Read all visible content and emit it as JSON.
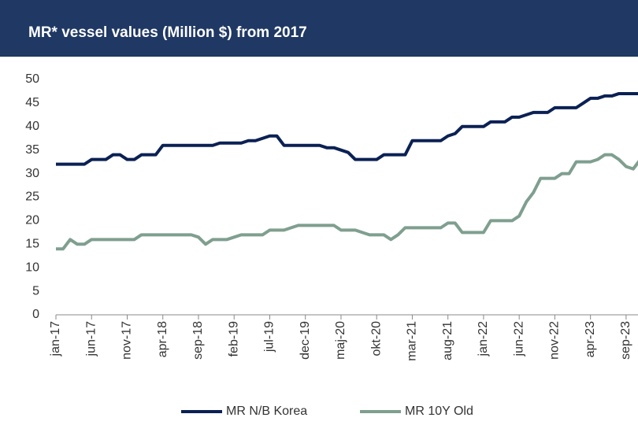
{
  "chart_data": {
    "type": "line",
    "title": "MR* vessel values (Million $) from 2017",
    "categories": [
      "jan-17",
      null,
      null,
      null,
      null,
      "jun-17",
      null,
      null,
      null,
      null,
      "nov-17",
      null,
      null,
      null,
      null,
      "apr-18",
      null,
      null,
      null,
      null,
      "sep-18",
      null,
      null,
      null,
      null,
      "feb-19",
      null,
      null,
      null,
      null,
      "jul-19",
      null,
      null,
      null,
      null,
      "dec-19",
      null,
      null,
      null,
      null,
      "maj-20",
      null,
      null,
      null,
      null,
      "okt-20",
      null,
      null,
      null,
      null,
      "mar-21",
      null,
      null,
      null,
      null,
      "aug-21",
      null,
      null,
      null,
      null,
      "jan-22",
      null,
      null,
      null,
      null,
      "jun-22",
      null,
      null,
      null,
      null,
      "nov-22",
      null,
      null,
      null,
      null,
      "apr-23",
      null,
      null,
      null,
      null,
      "sep-23",
      null,
      null
    ],
    "series": [
      {
        "name": "MR N/B Korea",
        "color": "#0b2154",
        "values": [
          32,
          32,
          32,
          32,
          32,
          33,
          33,
          33,
          34,
          34,
          33,
          33,
          34,
          34,
          34,
          36,
          36,
          36,
          36,
          36,
          36,
          36,
          36,
          36.5,
          36.5,
          36.5,
          36.5,
          37,
          37,
          37.5,
          38,
          38,
          36,
          36,
          36,
          36,
          36,
          36,
          35.5,
          35.5,
          35,
          34.5,
          33,
          33,
          33,
          33,
          34,
          34,
          34,
          34,
          37,
          37,
          37,
          37,
          37,
          38,
          38.5,
          40,
          40,
          40,
          40,
          41,
          41,
          41,
          42,
          42,
          42.5,
          43,
          43,
          43,
          44,
          44,
          44,
          44,
          45,
          46,
          46,
          46.5,
          46.5,
          47,
          47,
          47,
          47
        ]
      },
      {
        "name": "MR 10Y Old",
        "color": "#7f9f8f",
        "values": [
          14,
          14,
          16,
          15,
          15,
          16,
          16,
          16,
          16,
          16,
          16,
          16,
          17,
          17,
          17,
          17,
          17,
          17,
          17,
          17,
          16.5,
          15,
          16,
          16,
          16,
          16.5,
          17,
          17,
          17,
          17,
          18,
          18,
          18,
          18.5,
          19,
          19,
          19,
          19,
          19,
          19,
          18,
          18,
          18,
          17.5,
          17,
          17,
          17,
          16,
          17,
          18.5,
          18.5,
          18.5,
          18.5,
          18.5,
          18.5,
          19.5,
          19.5,
          17.5,
          17.5,
          17.5,
          17.5,
          20,
          20,
          20,
          20,
          21,
          24,
          26,
          29,
          29,
          29,
          30,
          30,
          32.5,
          32.5,
          32.5,
          33,
          34,
          34,
          33,
          31.5,
          31,
          33
        ]
      }
    ],
    "ylim": [
      0,
      50
    ],
    "yticks": [
      0,
      5,
      10,
      15,
      20,
      25,
      30,
      35,
      40,
      45,
      50
    ],
    "grid": false
  }
}
